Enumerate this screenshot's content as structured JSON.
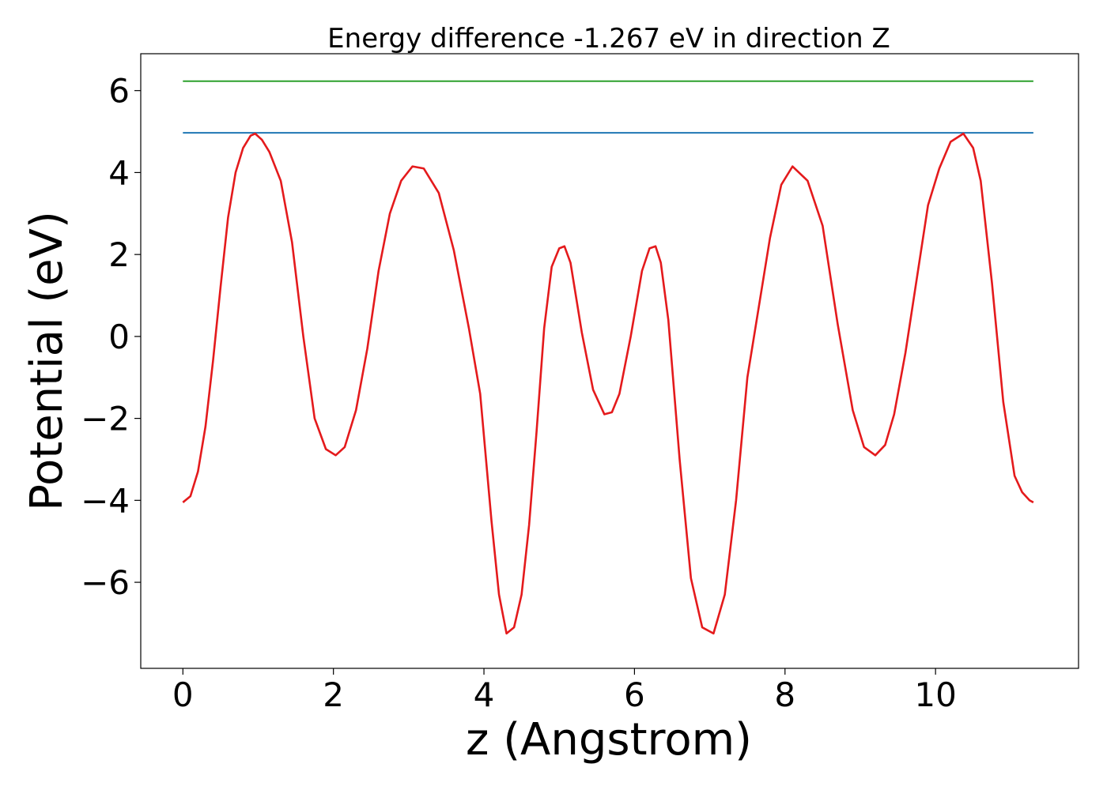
{
  "chart_data": {
    "type": "line",
    "title": "Energy difference -1.267 eV in direction Z",
    "xlabel": "z (Angstrom)",
    "ylabel": "Potential (eV)",
    "xlim": [
      -0.56,
      11.9
    ],
    "ylim": [
      -8.1,
      6.9
    ],
    "xticks": [
      0,
      2,
      4,
      6,
      8,
      10
    ],
    "xtick_labels": [
      "0",
      "2",
      "4",
      "6",
      "8",
      "10"
    ],
    "yticks": [
      -6,
      -4,
      -2,
      0,
      2,
      4,
      6
    ],
    "ytick_labels": [
      "−6",
      "−4",
      "−2",
      "0",
      "2",
      "4",
      "6"
    ],
    "grid": false,
    "series": [
      {
        "color": "#2ca02c",
        "x": [
          0,
          11.3
        ],
        "y": [
          6.23,
          6.23
        ]
      },
      {
        "color": "#1f77b4",
        "x": [
          0,
          11.3
        ],
        "y": [
          4.97,
          4.97
        ]
      },
      {
        "color": "#e41a1c",
        "x": [
          0.0,
          0.1,
          0.2,
          0.3,
          0.4,
          0.5,
          0.6,
          0.7,
          0.8,
          0.9,
          0.96,
          1.05,
          1.15,
          1.3,
          1.45,
          1.6,
          1.75,
          1.9,
          2.03,
          2.15,
          2.3,
          2.45,
          2.6,
          2.75,
          2.9,
          3.05,
          3.2,
          3.4,
          3.6,
          3.8,
          3.95,
          4.1,
          4.2,
          4.3,
          4.4,
          4.5,
          4.6,
          4.7,
          4.8,
          4.9,
          5.0,
          5.07,
          5.15,
          5.3,
          5.45,
          5.6,
          5.7,
          5.8,
          5.95,
          6.1,
          6.2,
          6.28,
          6.35,
          6.45,
          6.6,
          6.75,
          6.9,
          7.05,
          7.2,
          7.35,
          7.5,
          7.65,
          7.8,
          7.95,
          8.1,
          8.3,
          8.5,
          8.7,
          8.9,
          9.05,
          9.2,
          9.33,
          9.45,
          9.6,
          9.75,
          9.9,
          10.05,
          10.2,
          10.37,
          10.5,
          10.6,
          10.75,
          10.9,
          11.05,
          11.15,
          11.25,
          11.3
        ],
        "y": [
          -4.05,
          -3.9,
          -3.3,
          -2.2,
          -0.6,
          1.2,
          2.9,
          4.0,
          4.6,
          4.9,
          4.95,
          4.8,
          4.5,
          3.8,
          2.3,
          0.0,
          -2.0,
          -2.75,
          -2.9,
          -2.7,
          -1.8,
          -0.3,
          1.6,
          3.0,
          3.8,
          4.15,
          4.1,
          3.5,
          2.1,
          0.2,
          -1.4,
          -4.5,
          -6.3,
          -7.25,
          -7.1,
          -6.3,
          -4.6,
          -2.3,
          0.2,
          1.7,
          2.15,
          2.2,
          1.8,
          0.1,
          -1.3,
          -1.9,
          -1.85,
          -1.4,
          0.0,
          1.6,
          2.15,
          2.2,
          1.8,
          0.4,
          -3.0,
          -5.9,
          -7.1,
          -7.25,
          -6.3,
          -4.0,
          -1.0,
          0.7,
          2.4,
          3.7,
          4.15,
          3.8,
          2.7,
          0.3,
          -1.8,
          -2.7,
          -2.9,
          -2.65,
          -1.9,
          -0.4,
          1.4,
          3.2,
          4.1,
          4.75,
          4.95,
          4.6,
          3.8,
          1.3,
          -1.6,
          -3.4,
          -3.8,
          -4.0,
          -4.05
        ]
      }
    ]
  }
}
